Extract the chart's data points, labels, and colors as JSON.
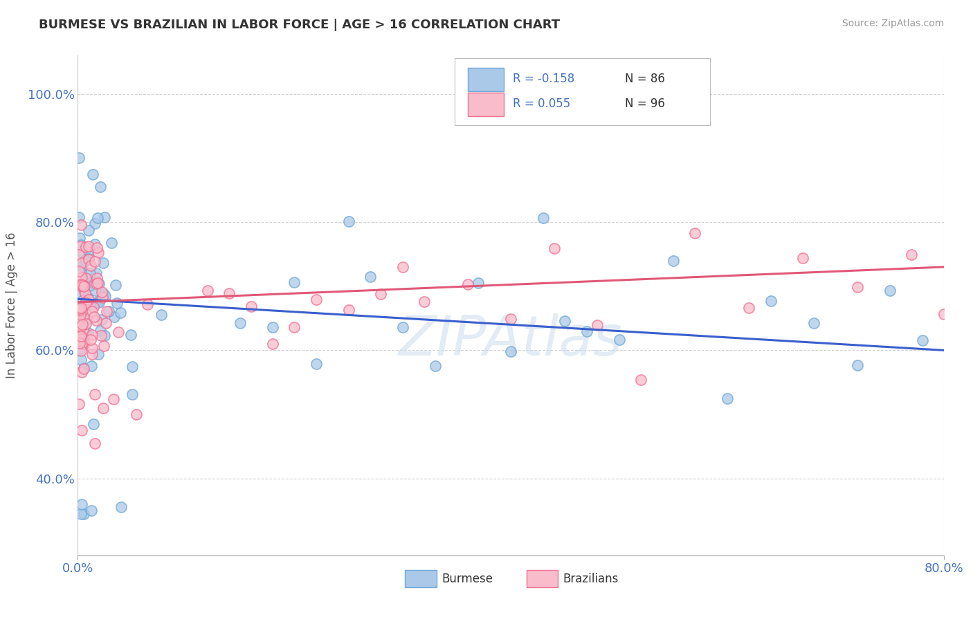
{
  "title": "BURMESE VS BRAZILIAN IN LABOR FORCE | AGE > 16 CORRELATION CHART",
  "source": "Source: ZipAtlas.com",
  "ylabel": "In Labor Force | Age > 16",
  "xlim": [
    0.0,
    0.8
  ],
  "ylim": [
    0.28,
    1.06
  ],
  "burmese_color": "#6fa8d6",
  "burmese_face": "#aac9e8",
  "brazilian_color": "#f07090",
  "brazilian_face": "#f9bccb",
  "line_blue": "#3a5fcd",
  "line_pink": "#e05878",
  "legend_R_blue": "R = -0.158",
  "legend_N_blue": "N = 86",
  "legend_R_pink": "R = 0.055",
  "legend_N_pink": "N = 96",
  "background": "#ffffff",
  "grid_color": "#cccccc",
  "blue_line_start": 0.68,
  "blue_line_end": 0.6,
  "pink_line_start": 0.675,
  "pink_line_end": 0.73
}
